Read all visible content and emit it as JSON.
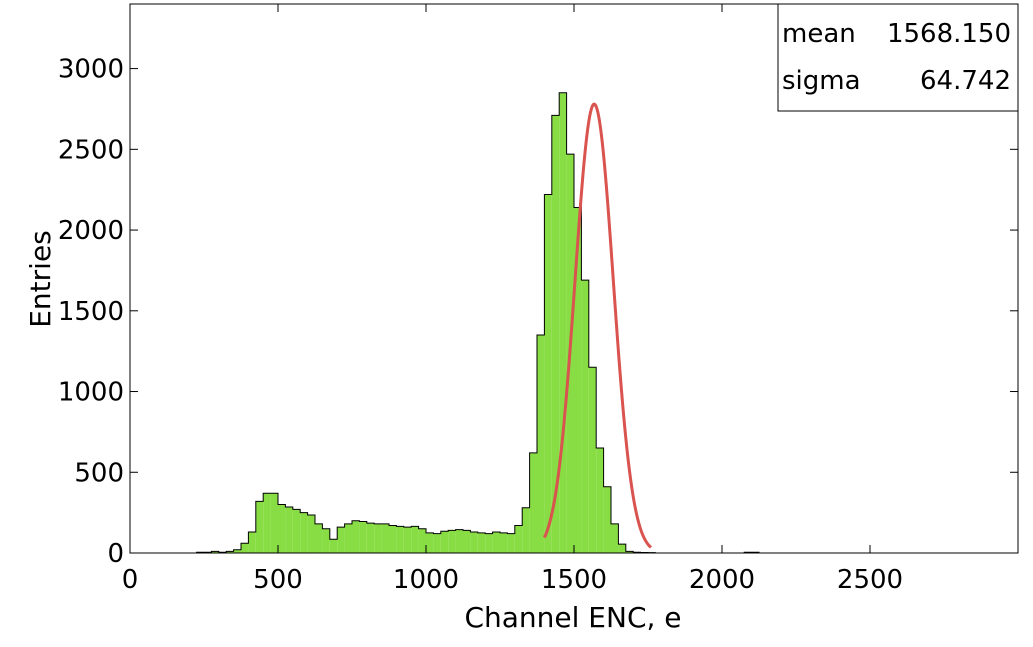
{
  "chart_data": {
    "type": "bar",
    "subtype": "histogram",
    "xlabel": "Channel ENC, e",
    "ylabel": "Entries",
    "xlim": [
      0,
      3000
    ],
    "ylim": [
      0,
      3400
    ],
    "xticks": [
      0,
      500,
      1000,
      1500,
      2000,
      2500
    ],
    "yticks": [
      0,
      500,
      1000,
      1500,
      2000,
      2500,
      3000
    ],
    "bin_width": 25,
    "bin_start": 225,
    "counts": [
      5,
      5,
      10,
      5,
      10,
      20,
      60,
      130,
      320,
      370,
      370,
      300,
      285,
      270,
      250,
      235,
      180,
      150,
      85,
      160,
      180,
      200,
      195,
      185,
      180,
      180,
      170,
      165,
      160,
      165,
      150,
      125,
      120,
      135,
      140,
      145,
      140,
      130,
      125,
      120,
      130,
      125,
      120,
      170,
      280,
      620,
      1350,
      2220,
      2710,
      2850,
      2470,
      2140,
      1690,
      1150,
      650,
      410,
      180,
      55,
      10,
      5,
      3,
      2,
      0,
      0,
      0,
      0,
      0,
      0,
      0,
      0,
      0,
      0,
      0,
      0,
      5,
      5
    ],
    "fit": {
      "type": "gaussian",
      "mean": 1568.15,
      "sigma": 64.742,
      "amplitude": 2780,
      "range": [
        1400,
        1760
      ]
    },
    "stats_box": {
      "mean_label": "mean",
      "mean_value": "1568.150",
      "sigma_label": "sigma",
      "sigma_value": "64.742"
    },
    "colors": {
      "fill": "#88dd44",
      "edge": "#000000",
      "fit": "#d9534f"
    },
    "grid": false,
    "legend": "top-right stats box"
  }
}
